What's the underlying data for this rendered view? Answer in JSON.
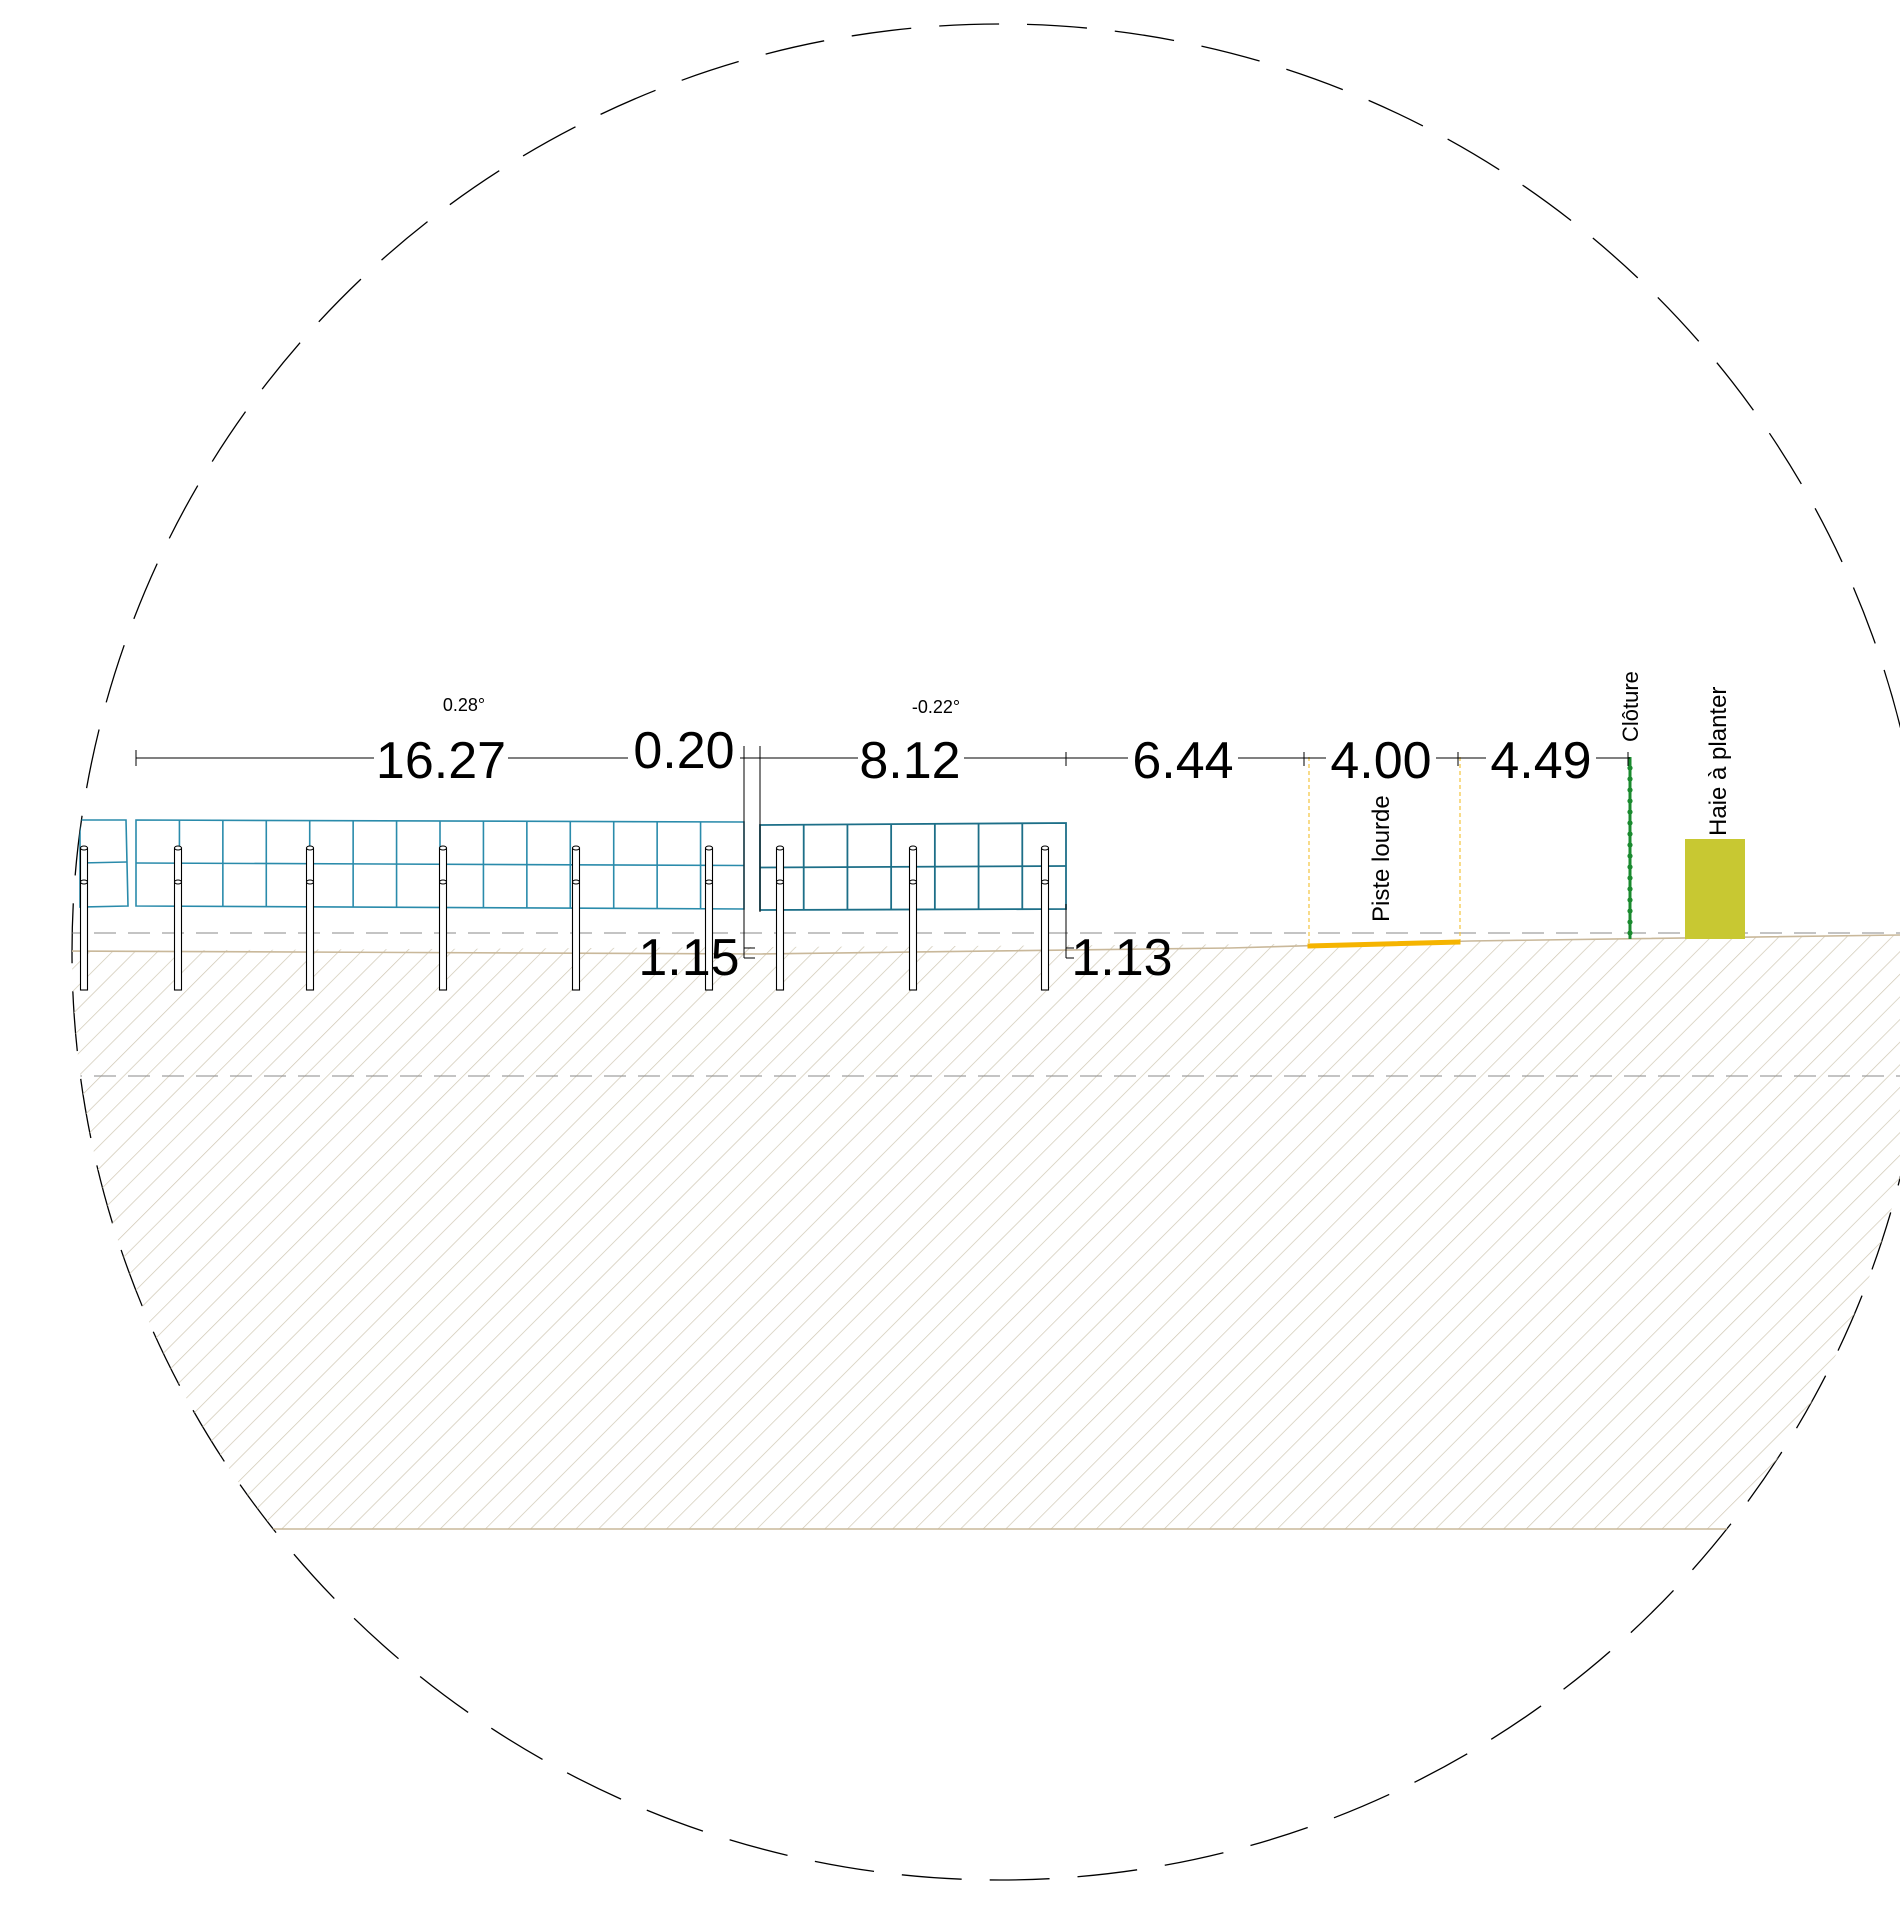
{
  "dimensions": {
    "row1_width": "16.27",
    "gap_between_rows": "0.20",
    "row2_width": "8.12",
    "row_to_track": "6.44",
    "track_width": "4.00",
    "track_to_fence": "4.49",
    "row1_low_edge_height": "1.15",
    "row2_low_edge_height": "1.13"
  },
  "angles": {
    "row1_tilt": "0.28°",
    "row2_tilt": "-0.22°"
  },
  "labels": {
    "track": "Piste lourde",
    "fence": "Clôture",
    "hedge": "Haie à planter"
  },
  "colors": {
    "panel": "#2a8bab",
    "panel_dark": "#1d6f88",
    "ground": "#c9b89a",
    "hatch": "#cfc7b3",
    "track": "#f5b400",
    "fence": "#1a8a2e",
    "hedge": "#c8c832",
    "line": "#000000"
  }
}
